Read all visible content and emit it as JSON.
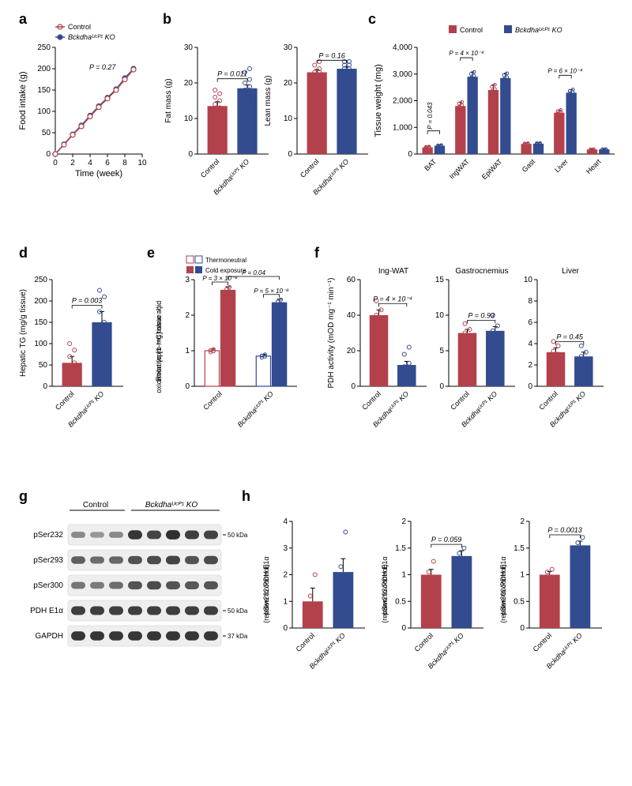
{
  "colors": {
    "ctrl": "#b3414b",
    "ko": "#334b8f",
    "bg": "#ffffff"
  },
  "groups": {
    "ctrl": "Control",
    "ko": "Bckdha^UCP1 KO",
    "ctrl_short": "Control",
    "ko_short": "Bckdha^UCP1 KO"
  },
  "legend_cond": {
    "tn": "Thermoneutral",
    "cold": "Cold exposure"
  },
  "a": {
    "label": "a",
    "ylabel": "Food intake (g)",
    "xlabel": "Time (week)",
    "p": "P = 0.27",
    "x": [
      0,
      1,
      2,
      3,
      4,
      5,
      6,
      7,
      8,
      9
    ],
    "ctrl": [
      0,
      22,
      45,
      65,
      88,
      110,
      130,
      150,
      175,
      198
    ],
    "ko": [
      0,
      23,
      46,
      67,
      90,
      112,
      132,
      152,
      178,
      200
    ],
    "yticks": [
      0,
      50,
      100,
      150,
      200,
      250
    ],
    "xticks": [
      0,
      2,
      4,
      6,
      8,
      10
    ]
  },
  "b": {
    "label": "b",
    "fat": {
      "ylabel": "Fat mass (g)",
      "p": "P = 0.011",
      "yticks": [
        0,
        10,
        20,
        30
      ],
      "ctrl": 13.5,
      "ko": 18.5,
      "ctrl_err": 1.2,
      "ko_err": 0.9,
      "ctrl_pts": [
        9,
        10,
        12,
        13,
        14,
        15,
        16,
        17,
        18
      ],
      "ko_pts": [
        14,
        15,
        16,
        17,
        18,
        19,
        20,
        21,
        23,
        24
      ]
    },
    "lean": {
      "ylabel": "Lean mass (g)",
      "p": "P = 0.16",
      "yticks": [
        0,
        10,
        20,
        30
      ],
      "ctrl": 23,
      "ko": 24,
      "ctrl_err": 0.8,
      "ko_err": 0.6,
      "ctrl_pts": [
        20,
        21,
        22,
        23,
        23,
        24,
        25,
        26
      ],
      "ko_pts": [
        22,
        23,
        23,
        24,
        24,
        25,
        25,
        26,
        26
      ]
    }
  },
  "c": {
    "label": "c",
    "ylabel": "Tissue weight (mg)",
    "yticks": [
      0,
      1000,
      2000,
      3000,
      4000
    ],
    "cats": [
      "BAT",
      "IngWAT",
      "EpiWAT",
      "Gast",
      "Liver",
      "Heart"
    ],
    "ctrl": [
      250,
      1800,
      2400,
      380,
      1550,
      170
    ],
    "ko": [
      310,
      2900,
      2850,
      390,
      2300,
      175
    ],
    "ctrl_err": [
      30,
      150,
      200,
      25,
      100,
      10
    ],
    "ko_err": [
      25,
      180,
      180,
      25,
      120,
      10
    ],
    "pvals": {
      "BAT": "P = 0.043",
      "IngWAT": "P = 4 × 10⁻⁴",
      "Liver": "P = 6 × 10⁻⁴"
    }
  },
  "d": {
    "label": "d",
    "ylabel": "Hepatic TG (mg/g tissue)",
    "p": "P = 0.003",
    "yticks": [
      0,
      50,
      100,
      150,
      200,
      250
    ],
    "ctrl": 55,
    "ko": 150,
    "ctrl_err": 15,
    "ko_err": 25,
    "ctrl_pts": [
      15,
      25,
      40,
      55,
      70,
      85,
      100
    ],
    "ko_pts": [
      95,
      115,
      135,
      150,
      175,
      210,
      225
    ]
  },
  "e": {
    "label": "e",
    "ylabel": "Relative [1-¹⁴C] oleic acid\noxidation (cpm mg tissue⁻¹)",
    "yticks": [
      0,
      1,
      2,
      3
    ],
    "bars": {
      "ctrl_tn": 1.0,
      "ctrl_cold": 2.7,
      "ko_tn": 0.85,
      "ko_cold": 2.35
    },
    "err": {
      "ctrl_tn": 0.05,
      "ctrl_cold": 0.1,
      "ko_tn": 0.05,
      "ko_cold": 0.1
    },
    "pvals": {
      "ctrl": "P = 3 × 10⁻⁸",
      "ko": "P = 5 × 10⁻⁸",
      "top": "P = 0.04"
    }
  },
  "f": {
    "label": "f",
    "ylabel": "PDH activity (mOD mg⁻¹ min⁻¹)",
    "panels": [
      {
        "title": "Ing-WAT",
        "yticks": [
          0,
          20,
          40,
          60
        ],
        "ctrl": 40,
        "ko": 12,
        "ctrl_err": 3,
        "ko_err": 2,
        "p": "P = 4 × 10⁻⁴",
        "ctrl_pts": [
          32,
          36,
          40,
          43,
          48
        ],
        "ko_pts": [
          7,
          9,
          11,
          13,
          18,
          22
        ]
      },
      {
        "title": "Gastrocnemius",
        "yticks": [
          0,
          5,
          10,
          15
        ],
        "ctrl": 7.5,
        "ko": 7.8,
        "ctrl_err": 0.5,
        "ko_err": 0.6,
        "p": "P = 0.93",
        "ctrl_pts": [
          6.5,
          7,
          7.5,
          8,
          8.8
        ],
        "ko_pts": [
          6,
          7,
          7.8,
          8.5,
          10
        ]
      },
      {
        "title": "Liver",
        "yticks": [
          0,
          2,
          4,
          6,
          8,
          10
        ],
        "ctrl": 3.2,
        "ko": 2.8,
        "ctrl_err": 0.4,
        "ko_err": 0.4,
        "p": "P = 0.45",
        "ctrl_pts": [
          2.5,
          3,
          3.3,
          3.8,
          4.2
        ],
        "ko_pts": [
          2,
          2.5,
          2.8,
          3.2,
          3.8
        ]
      }
    ]
  },
  "g": {
    "label": "g",
    "rows": [
      "pSer232",
      "pSer293",
      "pSer300",
      "PDH E1α",
      "GAPDH"
    ],
    "markers": [
      {
        "text": "50 kDa",
        "row": 0
      },
      {
        "text": "50 kDa",
        "row": 3
      },
      {
        "text": "37 kDa",
        "row": 4
      }
    ],
    "lanes": 8,
    "intensity": {
      "pSer232": [
        0.3,
        0.2,
        0.3,
        0.9,
        0.8,
        0.95,
        0.85,
        0.8
      ],
      "pSer293": [
        0.6,
        0.5,
        0.55,
        0.7,
        0.75,
        0.8,
        0.7,
        0.75
      ],
      "pSer300": [
        0.45,
        0.4,
        0.5,
        0.7,
        0.75,
        0.7,
        0.65,
        0.7
      ],
      "PDH E1α": [
        0.85,
        0.85,
        0.85,
        0.85,
        0.85,
        0.85,
        0.85,
        0.85
      ],
      "GAPDH": [
        0.9,
        0.9,
        0.9,
        0.9,
        0.9,
        0.9,
        0.9,
        0.9
      ]
    }
  },
  "h": {
    "label": "h",
    "panels": [
      {
        "ylabel": "pSer232/PDH E1α\n(relative to control)",
        "yticks": [
          0,
          1,
          2,
          3,
          4
        ],
        "ctrl": 1.0,
        "ko": 2.1,
        "ctrl_err": 0.5,
        "ko_err": 0.5,
        "p": "",
        "ctrl_pts": [
          0.3,
          0.5,
          1.2,
          2.0
        ],
        "ko_pts": [
          1.4,
          1.9,
          2.3,
          3.6
        ]
      },
      {
        "ylabel": "pSer293/PDH E1α\n(relative to control)",
        "yticks": [
          0,
          0.5,
          1,
          1.5,
          2
        ],
        "ctrl": 1.0,
        "ko": 1.35,
        "ctrl_err": 0.1,
        "ko_err": 0.1,
        "p": "P = 0.059",
        "ctrl_pts": [
          0.75,
          0.95,
          1.05,
          1.25
        ],
        "ko_pts": [
          1.2,
          1.3,
          1.4,
          1.5
        ]
      },
      {
        "ylabel": "pSer300/PDH E1α\n(relative to control)",
        "yticks": [
          0,
          0.5,
          1,
          1.5,
          2
        ],
        "ctrl": 1.0,
        "ko": 1.55,
        "ctrl_err": 0.06,
        "ko_err": 0.08,
        "p": "P = 0.0013",
        "ctrl_pts": [
          0.9,
          0.95,
          1.05,
          1.1
        ],
        "ko_pts": [
          1.4,
          1.5,
          1.6,
          1.7
        ]
      }
    ]
  }
}
